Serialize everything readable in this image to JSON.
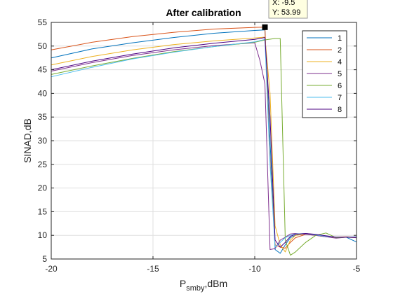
{
  "chart_data": {
    "type": "line",
    "title": "After calibration",
    "xlabel": "P",
    "xlabel_sub": "smby",
    "xlabel_suffix": ",dBm",
    "ylabel": "SINAD,dB",
    "xlim": [
      -20,
      -5
    ],
    "ylim": [
      5,
      55
    ],
    "xticks": [
      -20,
      -15,
      -10,
      -5
    ],
    "yticks": [
      5,
      10,
      15,
      20,
      25,
      30,
      35,
      40,
      45,
      50,
      55
    ],
    "grid": true,
    "legend_position": "top-right",
    "series": [
      {
        "name": "1",
        "color": "#0072bd",
        "x": [
          -20,
          -18,
          -16,
          -14,
          -12,
          -10,
          -9.5,
          -9.25,
          -9,
          -8.75,
          -8.5,
          -8.25,
          -8,
          -7.5,
          -7,
          -6.5,
          -6,
          -5.5,
          -5
        ],
        "y": [
          47.5,
          49.4,
          50.7,
          51.8,
          52.7,
          53.3,
          53.4,
          30,
          7,
          6.2,
          8,
          9.5,
          10,
          10.4,
          10.1,
          9.8,
          9.6,
          9.6,
          8.6
        ]
      },
      {
        "name": "2",
        "color": "#d95319",
        "x": [
          -20,
          -18,
          -16,
          -14,
          -12,
          -10,
          -9.5,
          -9.25,
          -9,
          -8.75,
          -8.5,
          -8.25,
          -8,
          -7.5,
          -7,
          -6.5,
          -6,
          -5.5,
          -5
        ],
        "y": [
          49.2,
          50.8,
          52,
          52.9,
          53.6,
          53.95,
          53.99,
          26,
          8,
          7.5,
          7.3,
          8.5,
          9.5,
          10.2,
          10,
          9.7,
          9.6,
          9.7,
          9.6
        ]
      },
      {
        "name": "4",
        "color": "#edb120",
        "x": [
          -20,
          -18,
          -16,
          -14,
          -12,
          -10,
          -9.5,
          -9.25,
          -9,
          -8.75,
          -8.5,
          -8.25,
          -8,
          -7.5,
          -7,
          -6.5,
          -6,
          -5.5,
          -5
        ],
        "y": [
          46,
          47.8,
          49.2,
          50.3,
          51.1,
          51.7,
          51.9,
          40,
          12,
          8,
          6.5,
          9,
          10,
          10.3,
          10.2,
          9.8,
          9.5,
          9.6,
          9.5
        ]
      },
      {
        "name": "5",
        "color": "#7e2f8e",
        "x": [
          -20,
          -18,
          -16,
          -14,
          -12,
          -10,
          -9.75,
          -9.5,
          -9.25,
          -9,
          -8.75,
          -8.5,
          -8.25,
          -8,
          -7.5,
          -7,
          -6.5,
          -6,
          -5.5,
          -5
        ],
        "y": [
          44.7,
          46.5,
          48,
          49.2,
          50.1,
          50.7,
          47,
          42,
          7,
          7.2,
          9,
          9.6,
          10.3,
          10.4,
          10.2,
          10,
          9.7,
          9.4,
          9.6,
          9.5
        ]
      },
      {
        "name": "6",
        "color": "#77ac30",
        "x": [
          -20,
          -18,
          -16,
          -14,
          -12,
          -10,
          -9.5,
          -9,
          -8.75,
          -8.5,
          -8.25,
          -8,
          -7.5,
          -7,
          -6.5,
          -6,
          -5.5,
          -5
        ],
        "y": [
          44,
          45.8,
          47.4,
          48.8,
          49.9,
          50.8,
          51.3,
          51.6,
          51.6,
          9,
          5.8,
          6.5,
          8.5,
          10,
          10.5,
          9.5,
          9.6,
          9.6
        ]
      },
      {
        "name": "7",
        "color": "#4dbeee",
        "x": [
          -20,
          -18,
          -16,
          -14,
          -12,
          -10,
          -9.5,
          -9.25,
          -9,
          -8.75,
          -8.5,
          -8.25,
          -8,
          -7.5,
          -7,
          -6.5,
          -6,
          -5.5,
          -5
        ],
        "y": [
          43.5,
          45.5,
          47.3,
          48.7,
          49.9,
          50.9,
          51.4,
          25,
          7.5,
          8.5,
          9.5,
          10,
          10.3,
          10.4,
          10.1,
          9.8,
          9.6,
          9.6,
          9.7
        ]
      },
      {
        "name": "8",
        "color": "#4b0082",
        "x": [
          -20,
          -18,
          -16,
          -14,
          -12,
          -10,
          -9.5,
          -9.25,
          -9,
          -8.75,
          -8.5,
          -8.25,
          -8,
          -7.5,
          -7,
          -6.5,
          -6,
          -5.5,
          -5
        ],
        "y": [
          45,
          46.8,
          48.3,
          49.6,
          50.6,
          51.4,
          51.8,
          35,
          9,
          7.5,
          8.5,
          9.8,
          10.2,
          10.4,
          10.2,
          9.9,
          9.6,
          9.6,
          9.6
        ]
      }
    ],
    "datatip": {
      "x": -9.5,
      "y": 53.99,
      "x_label": "X: -9.5",
      "y_label": "Y: 53.99"
    }
  }
}
